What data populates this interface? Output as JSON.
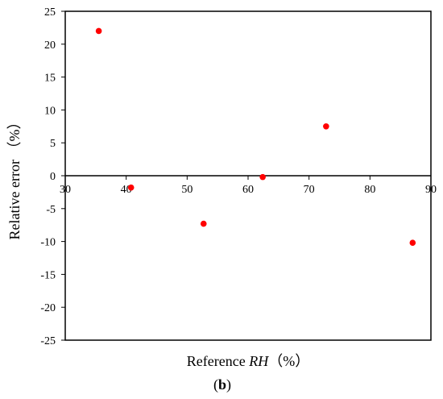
{
  "chart_data": {
    "type": "scatter",
    "xlabel": {
      "prefix": "Reference ",
      "italic": "RH",
      "suffix": "（%）"
    },
    "ylabel": "Relative error （%）",
    "caption": {
      "open": "(",
      "bold": "b",
      "close": ")"
    },
    "xlim": [
      30,
      90
    ],
    "ylim": [
      -25,
      25
    ],
    "xticks": [
      30,
      40,
      50,
      60,
      70,
      80,
      90
    ],
    "yticks": [
      25,
      20,
      15,
      10,
      5,
      0,
      -5,
      -10,
      -15,
      -20,
      -25
    ],
    "grid": false,
    "legend": "none",
    "marker_color": "#ff0000",
    "x_axis_crosses_at_y": 0,
    "series": [
      {
        "points": [
          {
            "x": 35.5,
            "y": 22.0
          },
          {
            "x": 40.8,
            "y": -1.8
          },
          {
            "x": 52.7,
            "y": -7.3
          },
          {
            "x": 62.4,
            "y": -0.2
          },
          {
            "x": 72.8,
            "y": 7.5
          },
          {
            "x": 87.0,
            "y": -10.2
          }
        ]
      }
    ]
  }
}
